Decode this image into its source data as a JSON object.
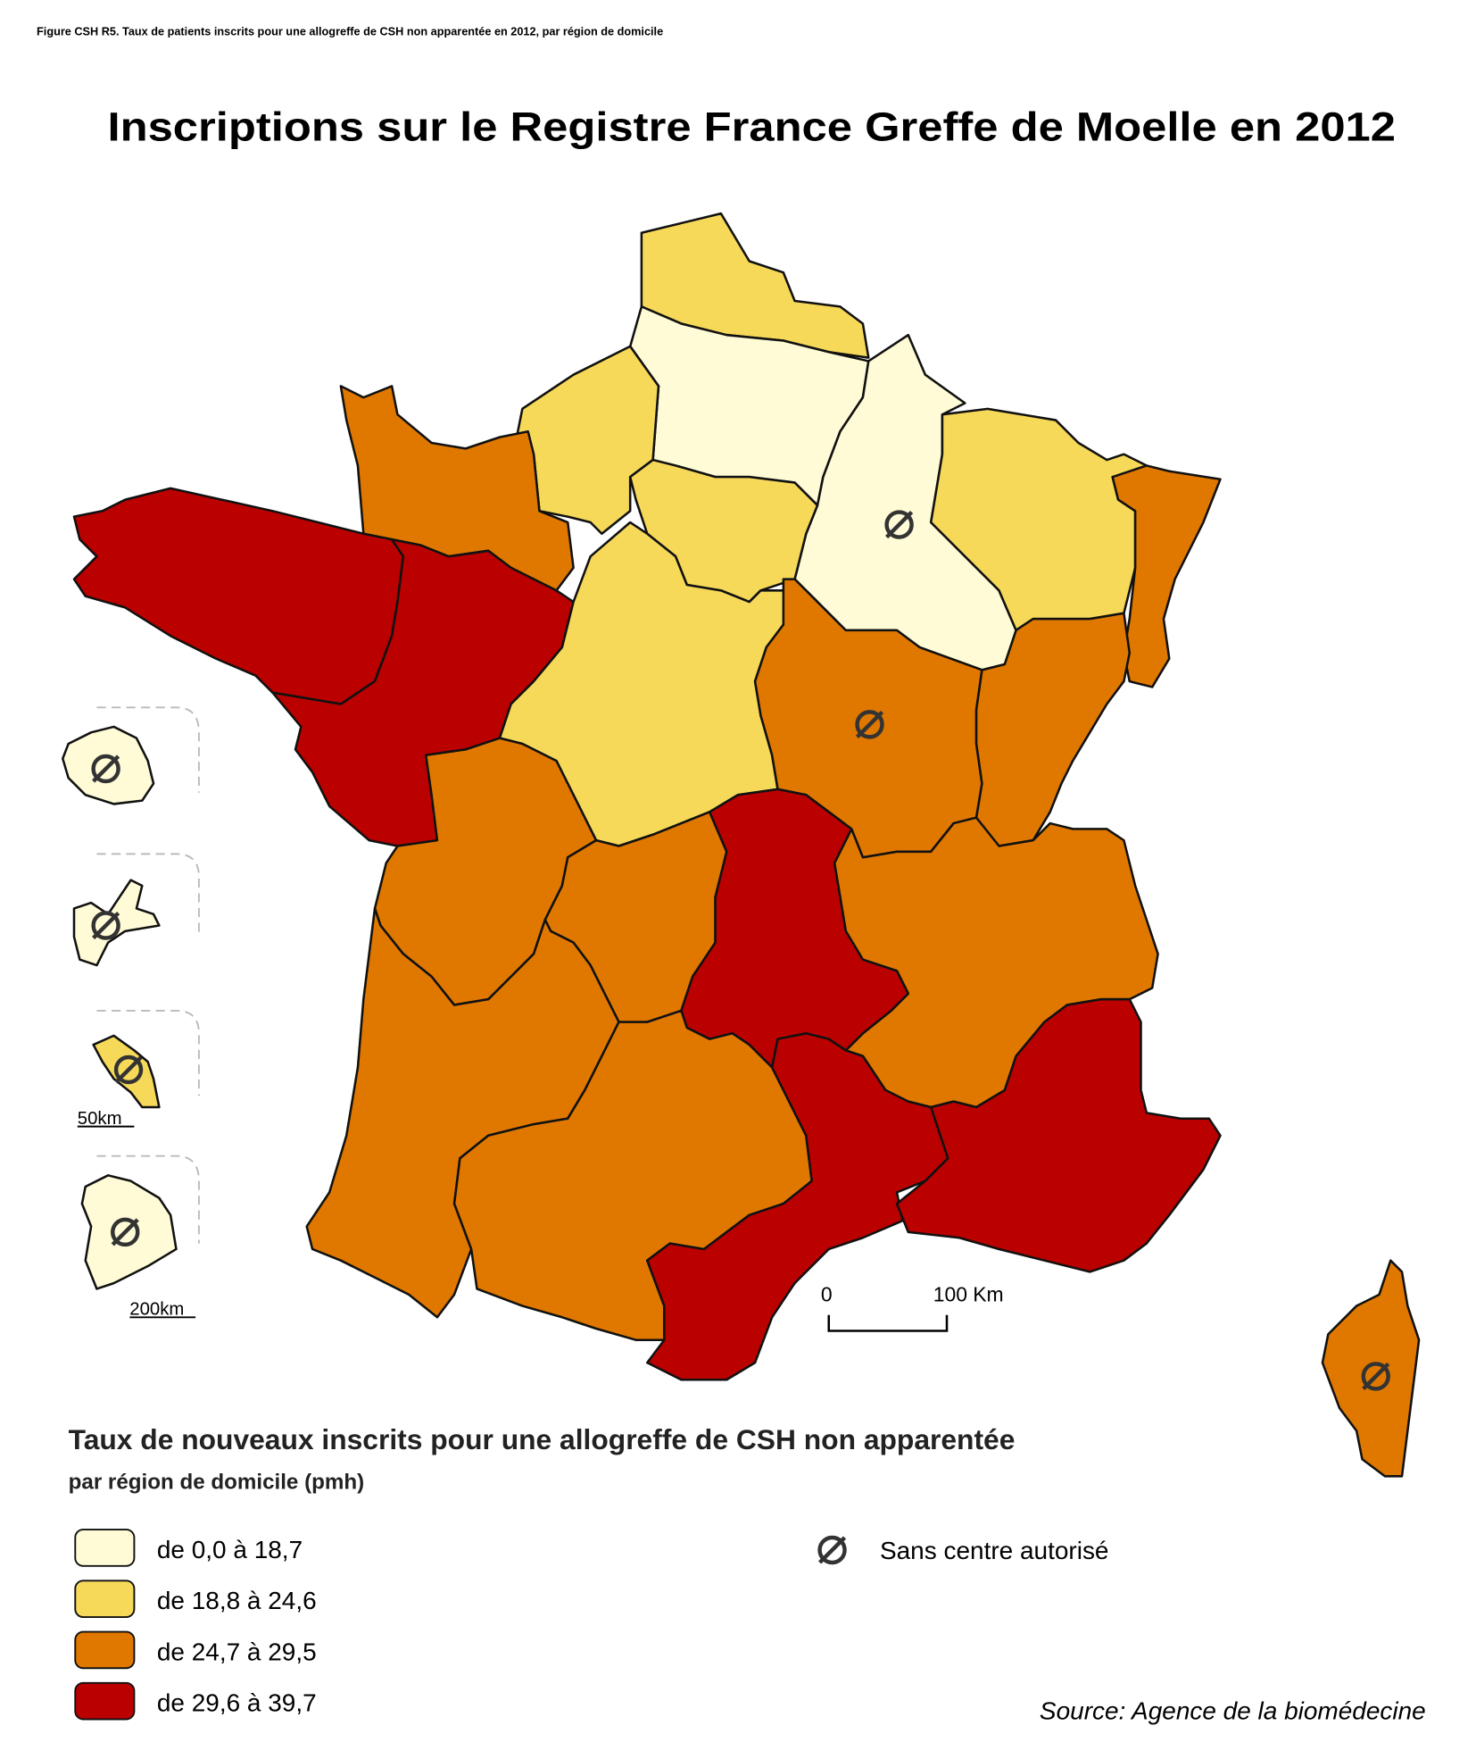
{
  "header": {
    "caption": "Figure CSH R5. Taux de patients inscrits pour une allogreffe de CSH non apparentée en 2012, par région de domicile",
    "title": "Inscriptions sur le Registre France Greffe de Moelle en 2012"
  },
  "map": {
    "inset_labels": [
      "50km",
      "200km"
    ],
    "scale": {
      "start": "0",
      "end": "100 Km"
    }
  },
  "legend": {
    "title": "Taux de nouveaux inscrits pour une allogreffe de CSH non apparentée",
    "subtitle": "par région de domicile (pmh)",
    "classes": [
      {
        "label": "de 0,0  à 18,7",
        "color": "#fffbd6"
      },
      {
        "label": "de 18,8 à 24,6",
        "color": "#f7d95a"
      },
      {
        "label": "de 24,7 à 29,5",
        "color": "#e07800"
      },
      {
        "label": "de 29,6 à 39,7",
        "color": "#bb0000"
      }
    ],
    "no_center": "Sans centre autorisé"
  },
  "source": "Source: Agence de la biomédecine"
}
